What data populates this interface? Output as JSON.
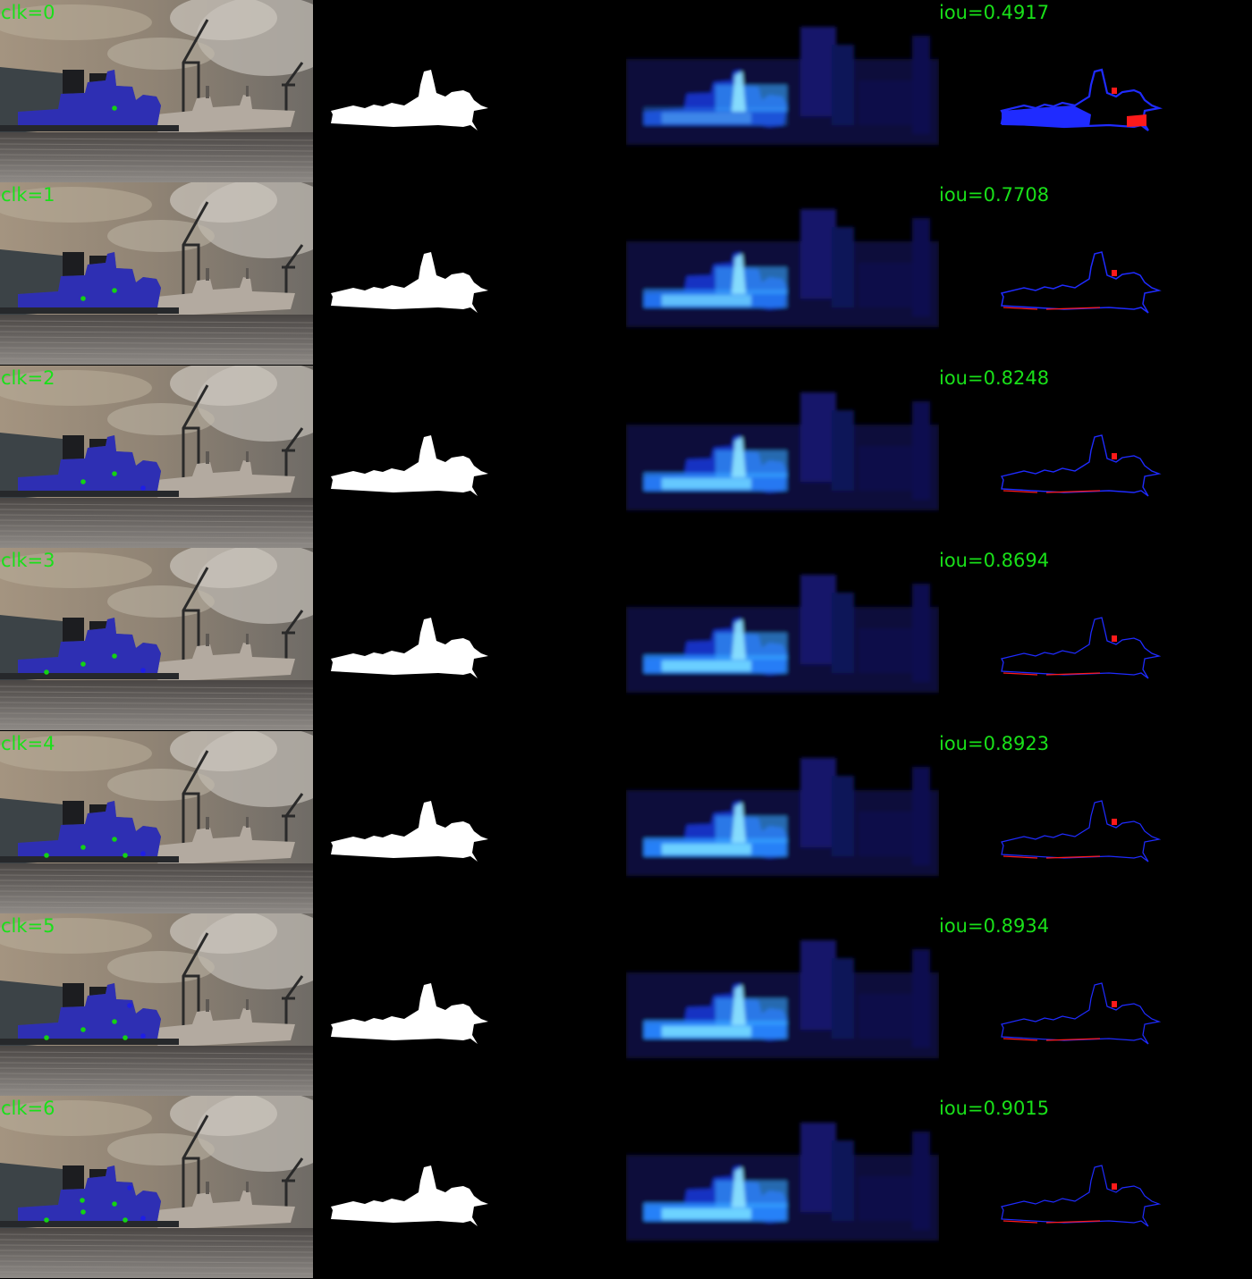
{
  "label_color": "#19e019",
  "mask_fill": "#ffffff",
  "overlay_color": "#2828c8",
  "click_positive_color": "#14d214",
  "click_negative_color": "#1e1ee6",
  "error_fp_color": "#ff1a1a",
  "error_fn_color": "#1f2bff",
  "panels": [
    "image-with-clicks-overlay",
    "predicted-mask",
    "probability-map",
    "error-map"
  ],
  "rows": [
    {
      "clk_label": "clk=0",
      "iou_label": "iou=0.4917",
      "iou": 0.4917
    },
    {
      "clk_label": "clk=1",
      "iou_label": "iou=0.7708",
      "iou": 0.7708
    },
    {
      "clk_label": "clk=2",
      "iou_label": "iou=0.8248",
      "iou": 0.8248
    },
    {
      "clk_label": "clk=3",
      "iou_label": "iou=0.8694",
      "iou": 0.8694
    },
    {
      "clk_label": "clk=4",
      "iou_label": "iou=0.8923",
      "iou": 0.8923
    },
    {
      "clk_label": "clk=5",
      "iou_label": "iou=0.8934",
      "iou": 0.8934
    },
    {
      "clk_label": "clk=6",
      "iou_label": "iou=0.9015",
      "iou": 0.9015
    }
  ]
}
